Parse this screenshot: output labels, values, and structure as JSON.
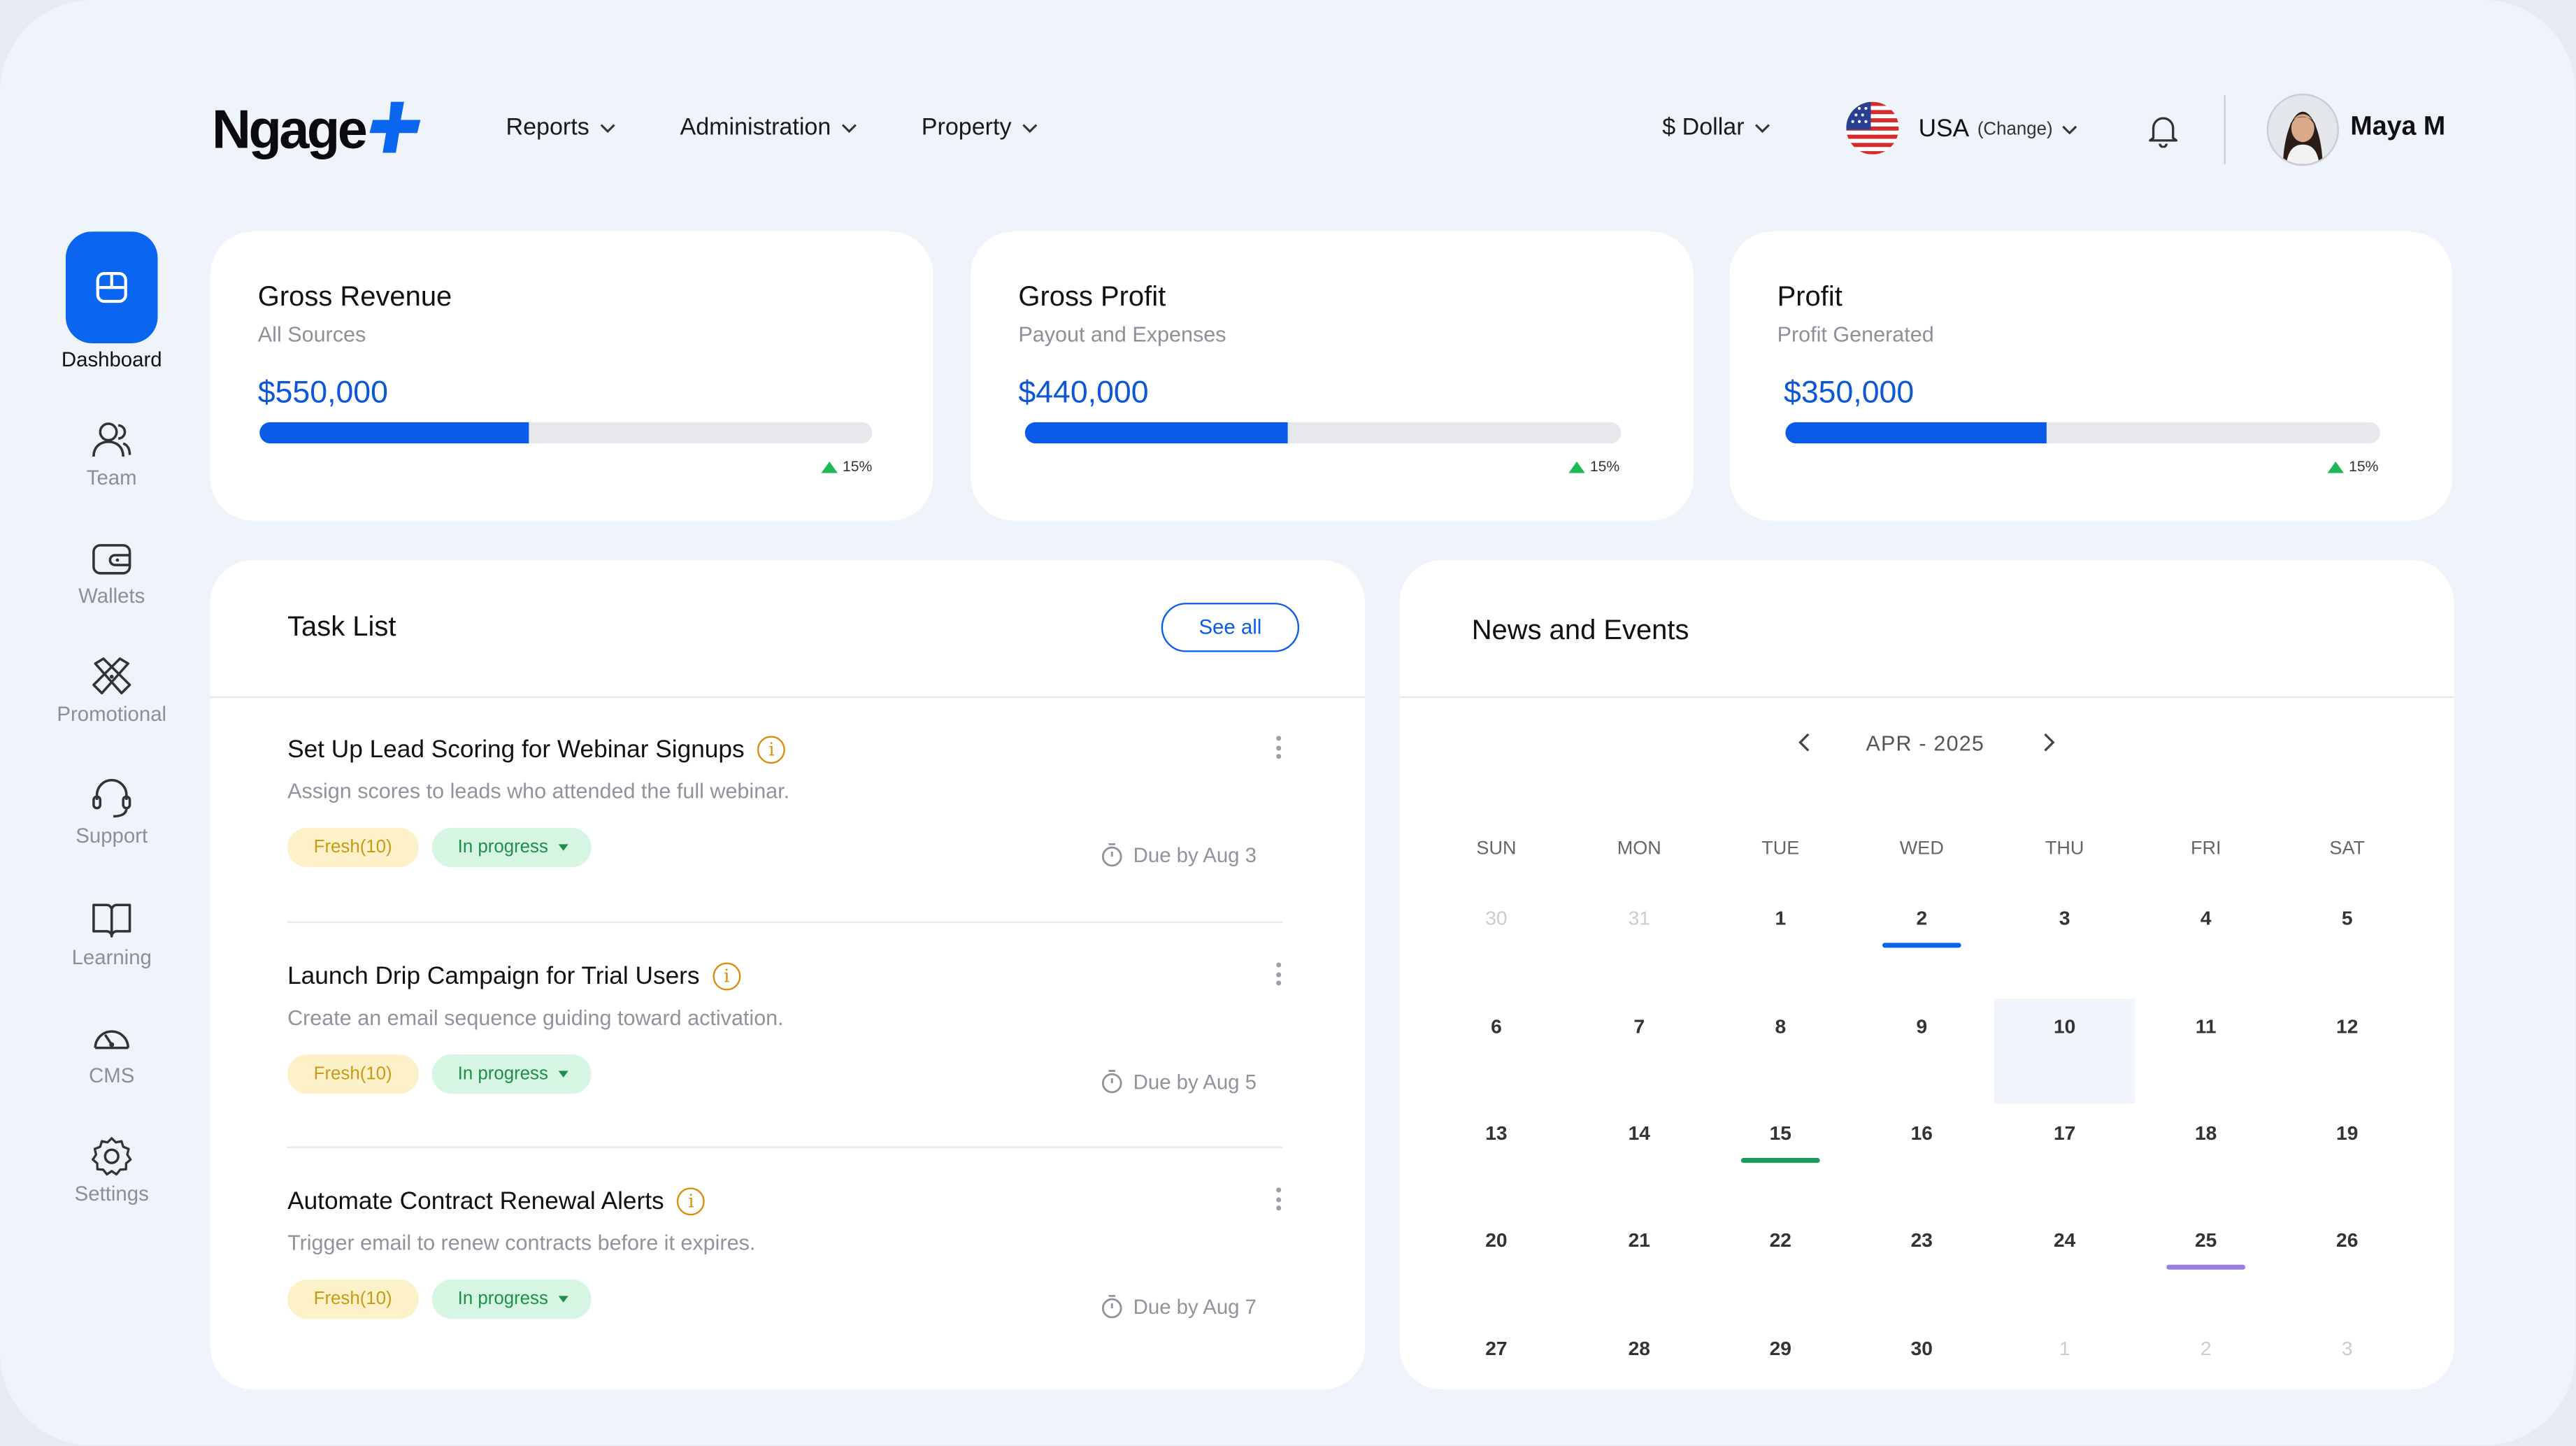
{
  "brand": {
    "name": "Ngage"
  },
  "nav": [
    {
      "label": "Reports"
    },
    {
      "label": "Administration"
    },
    {
      "label": "Property"
    }
  ],
  "header": {
    "currency": "$ Dollar",
    "country": "USA",
    "country_action": "(Change)",
    "user_name": "Maya M"
  },
  "sidebar": {
    "items": [
      {
        "label": "Dashboard",
        "icon": "dashboard-icon",
        "active": true
      },
      {
        "label": "Team",
        "icon": "team-icon"
      },
      {
        "label": "Wallets",
        "icon": "wallet-icon"
      },
      {
        "label": "Promotional",
        "icon": "promotional-icon"
      },
      {
        "label": "Support",
        "icon": "headset-icon"
      },
      {
        "label": "Learning",
        "icon": "book-icon"
      },
      {
        "label": "CMS",
        "icon": "gauge-icon"
      },
      {
        "label": "Settings",
        "icon": "gear-icon"
      }
    ]
  },
  "kpis": [
    {
      "title": "Gross Revenue",
      "subtitle": "All Sources",
      "value": "$550,000",
      "progress": 0.44,
      "delta": "15%"
    },
    {
      "title": "Gross Profit",
      "subtitle": "Payout and Expenses",
      "value": "$440,000",
      "progress": 0.44,
      "delta": "15%"
    },
    {
      "title": "Profit",
      "subtitle": "Profit Generated",
      "value": "$350,000",
      "progress": 0.44,
      "delta": "15%"
    }
  ],
  "tasks": {
    "title": "Task List",
    "see_all": "See all",
    "items": [
      {
        "title": "Set Up Lead Scoring for Webinar Signups",
        "desc": "Assign scores to leads who attended the full webinar.",
        "fresh": "Fresh(10)",
        "status": "In progress",
        "due": "Due by Aug 3"
      },
      {
        "title": "Launch Drip Campaign for Trial Users",
        "desc": "Create an email sequence guiding toward activation.",
        "fresh": "Fresh(10)",
        "status": "In progress",
        "due": "Due by Aug 5"
      },
      {
        "title": "Automate Contract Renewal Alerts",
        "desc": "Trigger email to renew contracts before it expires.",
        "fresh": "Fresh(10)",
        "status": "In progress",
        "due": "Due by Aug 7"
      }
    ]
  },
  "news": {
    "title": "News and Events",
    "month": "APR - 2025",
    "weekdays": [
      "SUN",
      "MON",
      "TUE",
      "WED",
      "THU",
      "FRI",
      "SAT"
    ],
    "weeks": [
      [
        "30",
        "31",
        "1",
        "2",
        "3",
        "4",
        "5"
      ],
      [
        "6",
        "7",
        "8",
        "9",
        "10",
        "11",
        "12"
      ],
      [
        "13",
        "14",
        "15",
        "16",
        "17",
        "18",
        "19"
      ],
      [
        "20",
        "21",
        "22",
        "23",
        "24",
        "25",
        "26"
      ],
      [
        "27",
        "28",
        "29",
        "30",
        "1",
        "2",
        "3"
      ]
    ],
    "muted": [
      [
        0,
        0
      ],
      [
        0,
        1
      ],
      [
        4,
        4
      ],
      [
        4,
        5
      ],
      [
        4,
        6
      ]
    ],
    "highlighted": [
      1,
      4
    ],
    "events": [
      {
        "week": 0,
        "day": 3,
        "color": "#0a66f0"
      },
      {
        "week": 2,
        "day": 2,
        "color": "#1a9a5c"
      },
      {
        "week": 3,
        "day": 5,
        "color": "#9b7de8"
      }
    ]
  },
  "colors": {
    "accent": "#0a66f0",
    "positive": "#1db954",
    "warning": "#d98d0b"
  }
}
